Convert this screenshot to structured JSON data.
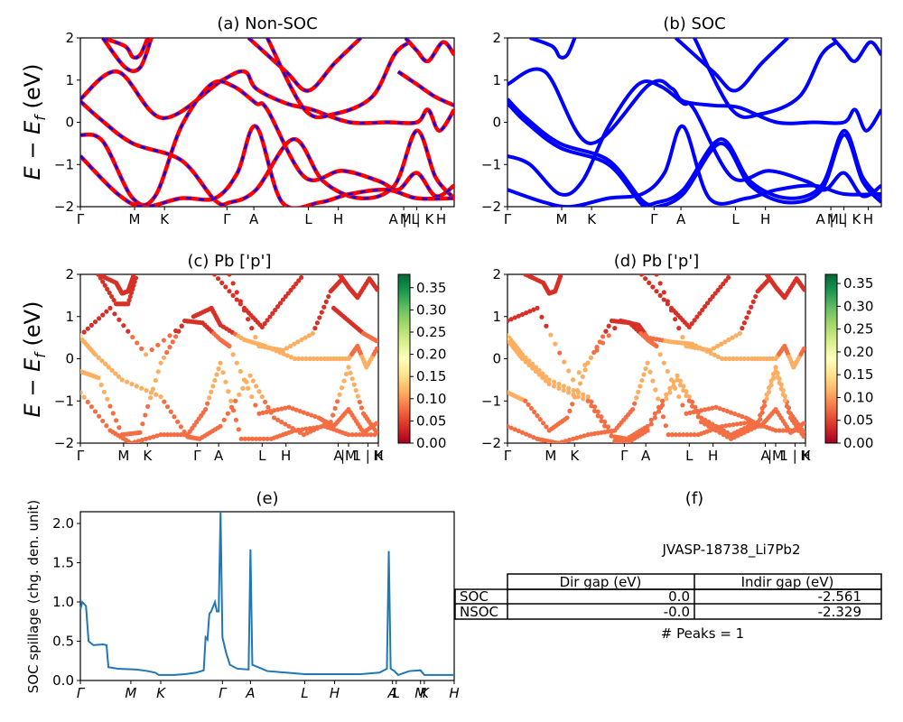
{
  "figure": {
    "ylabel_big": "E − E_f (eV)",
    "kpath": [
      "Γ",
      "M",
      "K",
      "Γ",
      "A",
      "L",
      "H",
      "A | L",
      "M | K",
      "H"
    ],
    "kpath_c": [
      "Γ",
      "M",
      "K",
      "Γ",
      "A",
      "L",
      "H",
      "A",
      "|M",
      "1 | K",
      "H"
    ],
    "kpath_e": [
      "Γ",
      "M",
      "K",
      "Γ",
      "A",
      "L",
      "H",
      "A",
      "L",
      "M",
      "K",
      "H"
    ],
    "yticks": [
      "−2",
      "−1",
      "0",
      "1",
      "2"
    ]
  },
  "panel_a": {
    "title": "(a) Non-SOC"
  },
  "panel_b": {
    "title": "(b) SOC"
  },
  "panel_c": {
    "title": "(c)  Pb ['p']"
  },
  "panel_d": {
    "title": "(d) Pb ['p']"
  },
  "panel_e": {
    "title": "(e)",
    "ylabel": "SOC spillage (chg. den. unit)",
    "yticks": [
      "0.0",
      "0.5",
      "1.0",
      "1.5",
      "2.0"
    ]
  },
  "panel_f": {
    "title": "(f)",
    "material": "JVASP-18738_Li7Pb2",
    "col_dir": "Dir gap (eV)",
    "col_indir": "Indir gap (eV)",
    "rows": [
      {
        "label": "SOC",
        "dir": "0.0",
        "indir": "-2.561"
      },
      {
        "label": "NSOC",
        "dir": "-0.0",
        "indir": "-2.329"
      }
    ],
    "peaks": "# Peaks = 1"
  },
  "colorbar": {
    "ticks": [
      "0.00",
      "0.05",
      "0.10",
      "0.15",
      "0.20",
      "0.25",
      "0.30",
      "0.35"
    ]
  },
  "colors": {
    "nonsoc_line": "#ff0000",
    "soc_line": "#0000ff",
    "spillage": "#1f77b4"
  },
  "chart_data": [
    {
      "type": "line",
      "title": "(a) Non-SOC",
      "xlabel": "",
      "ylabel": "E − E_f (eV)",
      "ylim": [
        -2,
        2
      ],
      "x_ticks": [
        "Γ",
        "M",
        "K",
        "Γ",
        "A",
        "L",
        "H",
        "A | L",
        "M | K",
        "H"
      ],
      "series": [
        {
          "values": [
            [
              0,
              0.5
            ],
            [
              0.05,
              0.1
            ],
            [
              0.14,
              -0.5
            ],
            [
              0.27,
              -0.9
            ],
            [
              0.36,
              -1.85
            ],
            [
              0.4,
              -1.9
            ],
            [
              0.47,
              -1.6
            ],
            [
              0.57,
              -0.4
            ],
            [
              0.65,
              -1.4
            ],
            [
              0.75,
              -1.8
            ],
            [
              0.84,
              -1.5
            ],
            [
              0.9,
              -0.2
            ],
            [
              0.95,
              -1.3
            ],
            [
              1,
              -1.8
            ]
          ]
        },
        {
          "values": [
            [
              0,
              0.55
            ],
            [
              0.1,
              1.2
            ],
            [
              0.22,
              0.1
            ],
            [
              0.38,
              1.0
            ],
            [
              0.44,
              1.2
            ],
            [
              0.47,
              0.8
            ],
            [
              0.55,
              0.45
            ],
            [
              0.62,
              0.3
            ],
            [
              0.72,
              0.0
            ],
            [
              0.82,
              0.0
            ],
            [
              0.9,
              0.0
            ],
            [
              0.93,
              0.3
            ],
            [
              0.96,
              -0.2
            ],
            [
              1,
              0.3
            ]
          ]
        },
        {
          "values": [
            [
              0,
              -0.3
            ],
            [
              0.06,
              -0.45
            ],
            [
              0.14,
              -1.8
            ],
            [
              0.2,
              -1.75
            ],
            [
              0.27,
              -0.1
            ],
            [
              0.35,
              0.9
            ],
            [
              0.41,
              0.85
            ],
            [
              0.47,
              0.45
            ],
            [
              0.5,
              0.3
            ],
            [
              0.6,
              -1.3
            ],
            [
              0.7,
              -1.15
            ],
            [
              0.8,
              -1.4
            ],
            [
              0.85,
              -1.6
            ],
            [
              0.9,
              -1.2
            ],
            [
              0.95,
              -1.75
            ],
            [
              1,
              -1.5
            ]
          ]
        },
        {
          "values": [
            [
              0,
              -0.8
            ],
            [
              0.1,
              -1.7
            ],
            [
              0.17,
              -2.0
            ],
            [
              0.27,
              -1.8
            ],
            [
              0.36,
              -1.8
            ],
            [
              0.42,
              -1.2
            ],
            [
              0.47,
              -0.1
            ],
            [
              0.54,
              -1.9
            ],
            [
              0.64,
              -1.9
            ],
            [
              0.72,
              -1.7
            ],
            [
              0.82,
              -1.6
            ],
            [
              0.9,
              -1.8
            ],
            [
              1,
              -1.8
            ]
          ]
        },
        {
          "values": [
            [
              0.06,
              2.0
            ],
            [
              0.12,
              1.8
            ],
            [
              0.14,
              1.55
            ],
            [
              0.16,
              1.6
            ],
            [
              0.18,
              2.0
            ]
          ]
        },
        {
          "values": [
            [
              0.06,
              2.0
            ],
            [
              0.12,
              1.3
            ],
            [
              0.16,
              1.3
            ],
            [
              0.19,
              2.0
            ]
          ]
        },
        {
          "values": [
            [
              0.45,
              2.0
            ],
            [
              0.55,
              1.2
            ],
            [
              0.61,
              0.75
            ],
            [
              0.68,
              1.4
            ],
            [
              0.75,
              2.0
            ]
          ]
        },
        {
          "values": [
            [
              0.5,
              2.0
            ],
            [
              0.6,
              0.3
            ],
            [
              0.68,
              0.2
            ],
            [
              0.78,
              0.6
            ],
            [
              0.84,
              1.6
            ],
            [
              0.88,
              1.9
            ]
          ]
        },
        {
          "values": [
            [
              0.87,
              2.0
            ],
            [
              0.9,
              1.7
            ],
            [
              0.93,
              1.45
            ],
            [
              0.97,
              1.9
            ],
            [
              1,
              1.6
            ]
          ]
        },
        {
          "values": [
            [
              0.85,
              1.2
            ],
            [
              0.9,
              0.9
            ],
            [
              0.95,
              0.6
            ],
            [
              1,
              0.4
            ]
          ]
        }
      ]
    },
    {
      "type": "line",
      "title": "(b) SOC",
      "xlabel": "",
      "ylabel": "",
      "ylim": [
        -2,
        2
      ],
      "x_ticks": [
        "Γ",
        "M",
        "K",
        "Γ",
        "A",
        "L",
        "H",
        "A | L",
        "M | K",
        "H"
      ],
      "series": [
        {
          "values": [
            [
              0,
              0.55
            ],
            [
              0.05,
              0.1
            ],
            [
              0.14,
              -0.5
            ],
            [
              0.27,
              -0.9
            ],
            [
              0.36,
              -1.85
            ],
            [
              0.4,
              -1.9
            ],
            [
              0.47,
              -1.6
            ],
            [
              0.57,
              -0.4
            ],
            [
              0.65,
              -1.4
            ],
            [
              0.75,
              -1.8
            ],
            [
              0.84,
              -1.5
            ],
            [
              0.9,
              -0.2
            ],
            [
              0.95,
              -1.3
            ],
            [
              1,
              -1.8
            ]
          ]
        },
        {
          "values": [
            [
              0,
              0.45
            ],
            [
              0.05,
              0.0
            ],
            [
              0.14,
              -0.6
            ],
            [
              0.27,
              -1.0
            ],
            [
              0.36,
              -1.95
            ],
            [
              0.4,
              -2.0
            ],
            [
              0.47,
              -1.7
            ],
            [
              0.57,
              -0.5
            ],
            [
              0.65,
              -1.5
            ],
            [
              0.75,
              -1.9
            ],
            [
              0.84,
              -1.6
            ],
            [
              0.9,
              -0.3
            ],
            [
              0.95,
              -1.4
            ],
            [
              1,
              -1.9
            ]
          ]
        },
        {
          "values": [
            [
              0,
              0.9
            ],
            [
              0.1,
              1.2
            ],
            [
              0.22,
              -0.5
            ],
            [
              0.38,
              0.9
            ],
            [
              0.44,
              0.8
            ],
            [
              0.47,
              0.5
            ],
            [
              0.55,
              0.4
            ],
            [
              0.62,
              0.35
            ],
            [
              0.72,
              0.0
            ],
            [
              0.82,
              0.0
            ],
            [
              0.9,
              0.0
            ],
            [
              0.93,
              0.3
            ],
            [
              0.96,
              -0.2
            ],
            [
              1,
              0.3
            ]
          ]
        },
        {
          "values": [
            [
              0,
              -0.8
            ],
            [
              0.06,
              -1.0
            ],
            [
              0.14,
              -1.7
            ],
            [
              0.2,
              -1.4
            ],
            [
              0.27,
              -0.1
            ],
            [
              0.35,
              0.9
            ],
            [
              0.41,
              0.85
            ],
            [
              0.47,
              0.45
            ],
            [
              0.5,
              0.3
            ],
            [
              0.6,
              -1.3
            ],
            [
              0.7,
              -1.15
            ],
            [
              0.8,
              -1.4
            ],
            [
              0.85,
              -1.6
            ],
            [
              0.9,
              -1.2
            ],
            [
              0.95,
              -1.75
            ],
            [
              1,
              -1.5
            ]
          ]
        },
        {
          "values": [
            [
              0,
              -1.6
            ],
            [
              0.1,
              -1.9
            ],
            [
              0.17,
              -2.0
            ],
            [
              0.27,
              -1.8
            ],
            [
              0.36,
              -1.7
            ],
            [
              0.42,
              -1.2
            ],
            [
              0.47,
              -0.1
            ],
            [
              0.54,
              -1.8
            ],
            [
              0.64,
              -1.8
            ],
            [
              0.72,
              -1.6
            ],
            [
              0.82,
              -1.5
            ],
            [
              0.9,
              -1.7
            ],
            [
              1,
              -1.7
            ]
          ]
        },
        {
          "values": [
            [
              0.06,
              2.0
            ],
            [
              0.12,
              1.8
            ],
            [
              0.14,
              1.55
            ],
            [
              0.16,
              1.6
            ],
            [
              0.18,
              2.0
            ]
          ]
        },
        {
          "values": [
            [
              0.45,
              2.0
            ],
            [
              0.55,
              1.2
            ],
            [
              0.61,
              0.75
            ],
            [
              0.68,
              1.4
            ],
            [
              0.75,
              2.0
            ]
          ]
        },
        {
          "values": [
            [
              0.5,
              2.0
            ],
            [
              0.6,
              0.3
            ],
            [
              0.68,
              0.2
            ],
            [
              0.78,
              0.6
            ],
            [
              0.84,
              1.6
            ],
            [
              0.88,
              1.9
            ]
          ]
        },
        {
          "values": [
            [
              0.87,
              2.0
            ],
            [
              0.9,
              1.7
            ],
            [
              0.93,
              1.45
            ],
            [
              0.97,
              1.9
            ],
            [
              1,
              1.6
            ]
          ]
        }
      ]
    },
    {
      "type": "scatter",
      "title": "(c)  Pb ['p']",
      "xlabel": "",
      "ylabel": "E − E_f (eV)",
      "ylim": [
        -2,
        2
      ],
      "colorbar_range": [
        0,
        0.38
      ],
      "x_ticks": [
        "Γ",
        "M",
        "K",
        "Γ",
        "A",
        "L",
        "H",
        "A",
        "|M",
        "1 | K",
        "H"
      ]
    },
    {
      "type": "scatter",
      "title": "(d) Pb ['p']",
      "xlabel": "",
      "ylabel": "",
      "ylim": [
        -2,
        2
      ],
      "colorbar_range": [
        0,
        0.37
      ],
      "x_ticks": [
        "Γ",
        "M",
        "K",
        "Γ",
        "A",
        "L",
        "H",
        "A",
        "|M",
        "1 | K",
        "H"
      ]
    },
    {
      "type": "line",
      "title": "(e)",
      "xlabel": "",
      "ylabel": "SOC spillage (chg. den. unit)",
      "ylim": [
        0,
        2.15
      ],
      "x_ticks": [
        "Γ",
        "M",
        "K",
        "Γ",
        "A",
        "L",
        "H",
        "A",
        "L",
        "M",
        "K",
        "H"
      ],
      "series": [
        {
          "name": "",
          "values": [
            [
              0,
              0.9
            ],
            [
              0.005,
              1.0
            ],
            [
              0.015,
              0.95
            ],
            [
              0.022,
              0.5
            ],
            [
              0.035,
              0.45
            ],
            [
              0.06,
              0.46
            ],
            [
              0.07,
              0.45
            ],
            [
              0.075,
              0.17
            ],
            [
              0.1,
              0.15
            ],
            [
              0.15,
              0.14
            ],
            [
              0.18,
              0.12
            ],
            [
              0.2,
              0.1
            ],
            [
              0.21,
              0.07
            ],
            [
              0.25,
              0.07
            ],
            [
              0.28,
              0.08
            ],
            [
              0.31,
              0.1
            ],
            [
              0.33,
              0.13
            ],
            [
              0.335,
              0.55
            ],
            [
              0.34,
              0.52
            ],
            [
              0.345,
              0.85
            ],
            [
              0.35,
              0.88
            ],
            [
              0.36,
              1.0
            ],
            [
              0.365,
              0.88
            ],
            [
              0.37,
              0.88
            ],
            [
              0.375,
              2.15
            ],
            [
              0.38,
              0.55
            ],
            [
              0.39,
              0.35
            ],
            [
              0.4,
              0.2
            ],
            [
              0.42,
              0.15
            ],
            [
              0.45,
              0.14
            ],
            [
              0.455,
              1.67
            ],
            [
              0.46,
              0.2
            ],
            [
              0.5,
              0.12
            ],
            [
              0.55,
              0.1
            ],
            [
              0.6,
              0.08
            ],
            [
              0.7,
              0.08
            ],
            [
              0.75,
              0.08
            ],
            [
              0.8,
              0.1
            ],
            [
              0.82,
              0.15
            ],
            [
              0.825,
              1.65
            ],
            [
              0.83,
              0.15
            ],
            [
              0.84,
              0.12
            ],
            [
              0.85,
              0.07
            ],
            [
              0.88,
              0.12
            ],
            [
              0.91,
              0.13
            ],
            [
              0.92,
              0.07
            ],
            [
              0.96,
              0.07
            ],
            [
              0.98,
              0.07
            ],
            [
              1,
              0.07
            ]
          ]
        }
      ]
    }
  ]
}
